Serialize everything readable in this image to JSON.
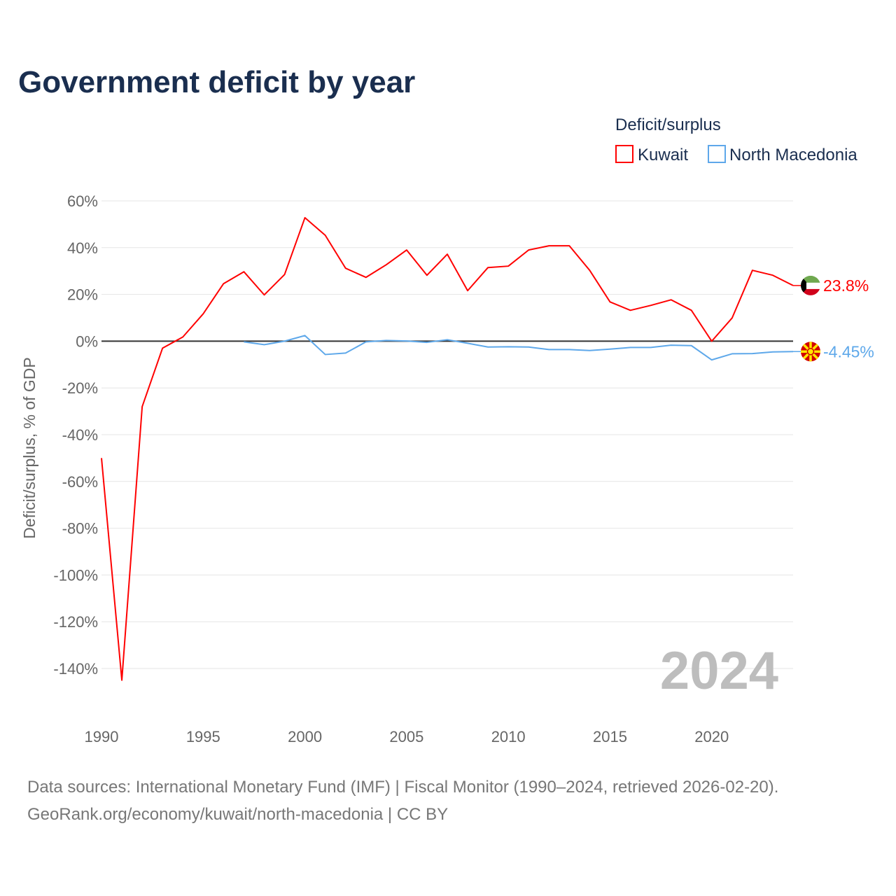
{
  "chart_data": {
    "type": "line",
    "title": "Government deficit by year",
    "xlabel": "",
    "ylabel": "Deficit/surplus, % of GDP",
    "xlim": [
      1990,
      2024
    ],
    "ylim": [
      -140,
      60
    ],
    "x_ticks": [
      "1990",
      "1995",
      "2000",
      "2005",
      "2010",
      "2015",
      "2020"
    ],
    "y_ticks": [
      "60%",
      "40%",
      "20%",
      "0%",
      "-20%",
      "-40%",
      "-60%",
      "-80%",
      "-100%",
      "-120%",
      "-140%"
    ],
    "y_tick_values": [
      60,
      40,
      20,
      0,
      -20,
      -40,
      -60,
      -80,
      -100,
      -120,
      -140
    ],
    "x_tick_values": [
      1990,
      1995,
      2000,
      2005,
      2010,
      2015,
      2020
    ],
    "grid": true,
    "legend_title": "Deficit/surplus",
    "legend_position": "top-right",
    "year_watermark": "2024",
    "series": [
      {
        "name": "Kuwait",
        "color": "#ff0000",
        "end_label": "23.8%",
        "start_year": 1990,
        "values": [
          -50,
          -145,
          -28,
          -3,
          1.8,
          11.7,
          24.6,
          29.7,
          19.8,
          28.5,
          52.8,
          45.3,
          31.2,
          27.3,
          32.7,
          39,
          28.2,
          37.2,
          21.6,
          31.5,
          32.1,
          39,
          40.8,
          40.8,
          30.3,
          16.8,
          13.2,
          15.3,
          17.7,
          13.2,
          0,
          9.9,
          30.3,
          28.2,
          23.8
        ]
      },
      {
        "name": "North Macedonia",
        "color": "#5ea8ea",
        "end_label": "-4.45%",
        "start_year": 1997,
        "values": [
          -0.3,
          -1.5,
          0,
          2.4,
          -5.7,
          -5.1,
          -0.3,
          0.3,
          0.1,
          -0.5,
          0.6,
          -0.9,
          -2.5,
          -2.4,
          -2.5,
          -3.6,
          -3.6,
          -4.0,
          -3.4,
          -2.7,
          -2.7,
          -1.7,
          -1.9,
          -8.0,
          -5.4,
          -5.3,
          -4.6,
          -4.45
        ]
      }
    ]
  },
  "footer": {
    "source": "Data sources: International Monetary Fund (IMF) | Fiscal Monitor (1990–2024, retrieved 2026-02-20).",
    "credit": "GeoRank.org/economy/kuwait/north-macedonia | CC BY"
  }
}
